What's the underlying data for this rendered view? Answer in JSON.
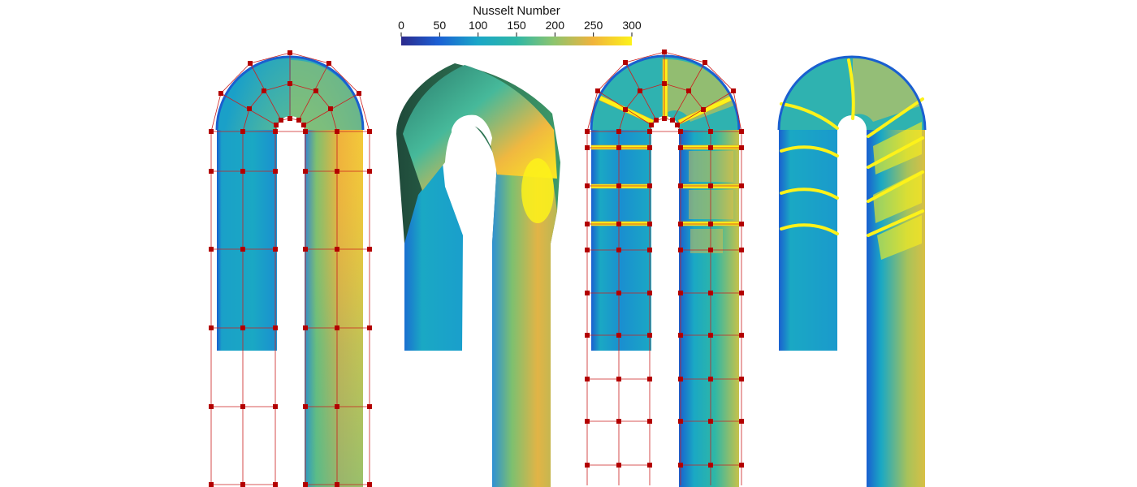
{
  "chart_data": {
    "type": "heatmap",
    "title": "",
    "colorbar": {
      "title": "Nusselt Number",
      "range": [
        0,
        300
      ],
      "ticks": [
        0,
        50,
        100,
        150,
        200,
        250,
        300
      ],
      "colormap": [
        "#2c2a8c",
        "#1b5fd4",
        "#1aa6c8",
        "#2fb7a6",
        "#8cc46e",
        "#f0b33c",
        "#fdf21a"
      ]
    },
    "panels": [
      {
        "name": "",
        "description_tag": "baseline-u-bend-with-control-lattice"
      },
      {
        "name": "",
        "description_tag": "deformed-u-bend-3d"
      },
      {
        "name": "",
        "description_tag": "ribbed-u-bend-with-control-lattice"
      },
      {
        "name": "",
        "description_tag": "optimized-ribbed-u-bend"
      }
    ],
    "colors": {
      "lattice": "#cc1f1f",
      "lattice_node": "#b30000",
      "edge_blue": "#1a5fd0"
    }
  }
}
